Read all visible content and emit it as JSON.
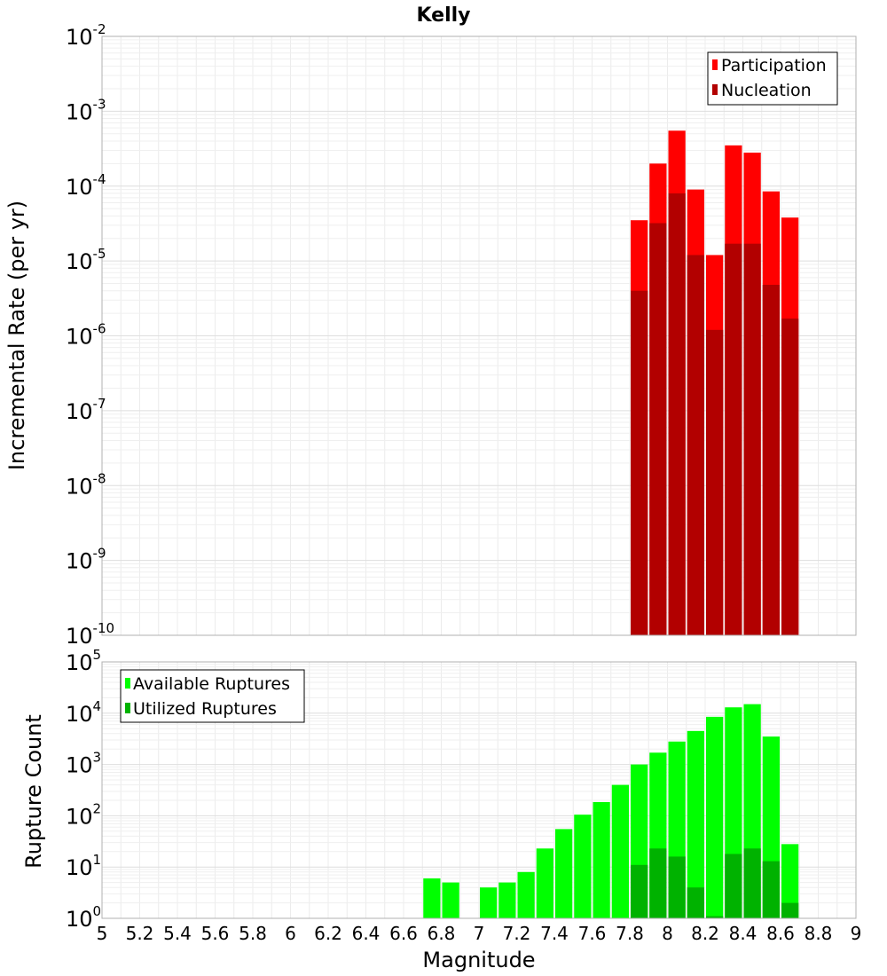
{
  "chart_data": [
    {
      "type": "bar",
      "title": "Kelly",
      "ylabel": "Incremental Rate (per yr)",
      "xlabel": "",
      "yscale": "log",
      "ylim_exponents": [
        -10,
        -2
      ],
      "xlim": [
        5,
        9
      ],
      "bar_width": 0.1,
      "legend_position": "top-right",
      "series": [
        {
          "name": "Participation",
          "color": "#ff0000",
          "x": [
            7.85,
            7.95,
            8.05,
            8.15,
            8.25,
            8.35,
            8.45,
            8.55,
            8.65
          ],
          "values": [
            3.5e-05,
            0.0002,
            0.00055,
            9e-05,
            1.2e-05,
            0.00035,
            0.00028,
            8.5e-05,
            3.8e-05
          ]
        },
        {
          "name": "Nucleation",
          "color": "#b20000",
          "x": [
            7.85,
            7.95,
            8.05,
            8.15,
            8.25,
            8.35,
            8.45,
            8.55,
            8.65
          ],
          "values": [
            4e-06,
            3.2e-05,
            8e-05,
            1.2e-05,
            1.2e-06,
            1.7e-05,
            1.7e-05,
            4.8e-06,
            1.7e-06
          ]
        }
      ]
    },
    {
      "type": "bar",
      "title": "",
      "ylabel": "Rupture Count",
      "xlabel": "Magnitude",
      "yscale": "log",
      "ylim_exponents": [
        0,
        5
      ],
      "xlim": [
        5,
        9
      ],
      "bar_width": 0.1,
      "legend_position": "top-left",
      "x_tick_labels": [
        "5",
        "5.2",
        "5.4",
        "5.6",
        "5.8",
        "6",
        "6.2",
        "6.4",
        "6.6",
        "6.8",
        "7",
        "7.2",
        "7.4",
        "7.6",
        "7.8",
        "8",
        "8.2",
        "8.4",
        "8.6",
        "8.8",
        "9"
      ],
      "series": [
        {
          "name": "Available Ruptures",
          "color": "#00ff00",
          "x": [
            6.75,
            6.85,
            7.05,
            7.15,
            7.25,
            7.35,
            7.45,
            7.55,
            7.65,
            7.75,
            7.85,
            7.95,
            8.05,
            8.15,
            8.25,
            8.35,
            8.45,
            8.55,
            8.65
          ],
          "values": [
            6,
            5,
            4,
            5,
            8,
            23,
            55,
            105,
            185,
            400,
            1000,
            1700,
            2800,
            4500,
            8500,
            13000,
            15000,
            3500,
            28
          ]
        },
        {
          "name": "Utilized Ruptures",
          "color": "#00b200",
          "x": [
            7.85,
            7.95,
            8.05,
            8.15,
            8.25,
            8.35,
            8.45,
            8.55,
            8.65
          ],
          "values": [
            11,
            23,
            16,
            4,
            1.1,
            18,
            23,
            13,
            2
          ]
        }
      ]
    }
  ]
}
